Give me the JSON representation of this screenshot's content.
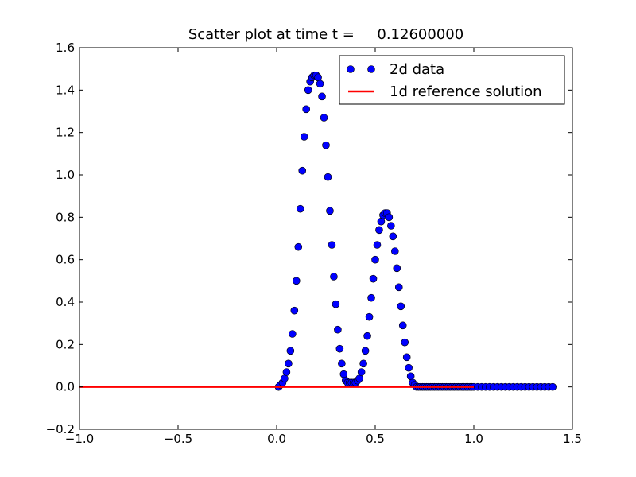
{
  "chart_data": {
    "type": "scatter",
    "title": "Scatter plot at time t =     0.12600000",
    "xlabel": "",
    "ylabel": "",
    "xlim": [
      -1.0,
      1.5
    ],
    "ylim": [
      -0.2,
      1.6
    ],
    "xticks": [
      "−1.0",
      "−0.5",
      "0.0",
      "0.5",
      "1.0",
      "1.5"
    ],
    "xtick_values": [
      -1.0,
      -0.5,
      0.0,
      0.5,
      1.0,
      1.5
    ],
    "yticks": [
      "−0.2",
      "0.0",
      "0.2",
      "0.4",
      "0.6",
      "0.8",
      "1.0",
      "1.2",
      "1.4",
      "1.6"
    ],
    "ytick_values": [
      -0.2,
      0.0,
      0.2,
      0.4,
      0.6,
      0.8,
      1.0,
      1.2,
      1.4,
      1.6
    ],
    "grid": false,
    "legend_position": "top-right",
    "series": [
      {
        "name": "2d data",
        "kind": "scatter",
        "color": "#0000ff",
        "edge_color": "#000000",
        "x": [
          0.01,
          0.02,
          0.03,
          0.04,
          0.05,
          0.06,
          0.07,
          0.08,
          0.09,
          0.1,
          0.11,
          0.12,
          0.13,
          0.14,
          0.15,
          0.16,
          0.17,
          0.18,
          0.19,
          0.2,
          0.21,
          0.22,
          0.23,
          0.24,
          0.25,
          0.26,
          0.27,
          0.28,
          0.29,
          0.3,
          0.31,
          0.32,
          0.33,
          0.34,
          0.35,
          0.36,
          0.37,
          0.38,
          0.39,
          0.4,
          0.41,
          0.42,
          0.43,
          0.44,
          0.45,
          0.46,
          0.47,
          0.48,
          0.49,
          0.5,
          0.51,
          0.52,
          0.53,
          0.54,
          0.55,
          0.56,
          0.57,
          0.58,
          0.59,
          0.6,
          0.61,
          0.62,
          0.63,
          0.64,
          0.65,
          0.66,
          0.67,
          0.68,
          0.69,
          0.7,
          0.71,
          0.72,
          0.73,
          0.74,
          0.75,
          0.76,
          0.77,
          0.78,
          0.79,
          0.8,
          0.81,
          0.82,
          0.83,
          0.84,
          0.85,
          0.86,
          0.87,
          0.88,
          0.89,
          0.9,
          0.91,
          0.92,
          0.93,
          0.94,
          0.95,
          0.96,
          0.97,
          0.98,
          0.99,
          1.0,
          1.02,
          1.04,
          1.06,
          1.08,
          1.1,
          1.12,
          1.14,
          1.16,
          1.18,
          1.2,
          1.22,
          1.24,
          1.26,
          1.28,
          1.3,
          1.32,
          1.34,
          1.36,
          1.38,
          1.4
        ],
        "y": [
          0.0,
          0.01,
          0.02,
          0.04,
          0.07,
          0.11,
          0.17,
          0.25,
          0.36,
          0.5,
          0.66,
          0.84,
          1.02,
          1.18,
          1.31,
          1.4,
          1.44,
          1.46,
          1.47,
          1.47,
          1.46,
          1.43,
          1.37,
          1.27,
          1.14,
          0.99,
          0.83,
          0.67,
          0.52,
          0.39,
          0.27,
          0.18,
          0.11,
          0.06,
          0.03,
          0.02,
          0.02,
          0.02,
          0.02,
          0.02,
          0.03,
          0.04,
          0.07,
          0.11,
          0.17,
          0.24,
          0.33,
          0.42,
          0.51,
          0.6,
          0.67,
          0.74,
          0.78,
          0.81,
          0.82,
          0.82,
          0.8,
          0.76,
          0.71,
          0.64,
          0.56,
          0.47,
          0.38,
          0.29,
          0.21,
          0.14,
          0.09,
          0.05,
          0.02,
          0.01,
          0.0,
          0.0,
          0.0,
          0.0,
          0.0,
          0.0,
          0.0,
          0.0,
          0.0,
          0.0,
          0.0,
          0.0,
          0.0,
          0.0,
          0.0,
          0.0,
          0.0,
          0.0,
          0.0,
          0.0,
          0.0,
          0.0,
          0.0,
          0.0,
          0.0,
          0.0,
          0.0,
          0.0,
          0.0,
          0.0,
          0.0,
          0.0,
          0.0,
          0.0,
          0.0,
          0.0,
          0.0,
          0.0,
          0.0,
          0.0,
          0.0,
          0.0,
          0.0,
          0.0,
          0.0,
          0.0,
          0.0,
          0.0,
          0.0,
          0.0
        ]
      },
      {
        "name": "1d reference solution",
        "kind": "line",
        "color": "#ff0000",
        "x": [
          -1.0,
          1.0
        ],
        "y": [
          0.0,
          0.0
        ]
      }
    ]
  }
}
